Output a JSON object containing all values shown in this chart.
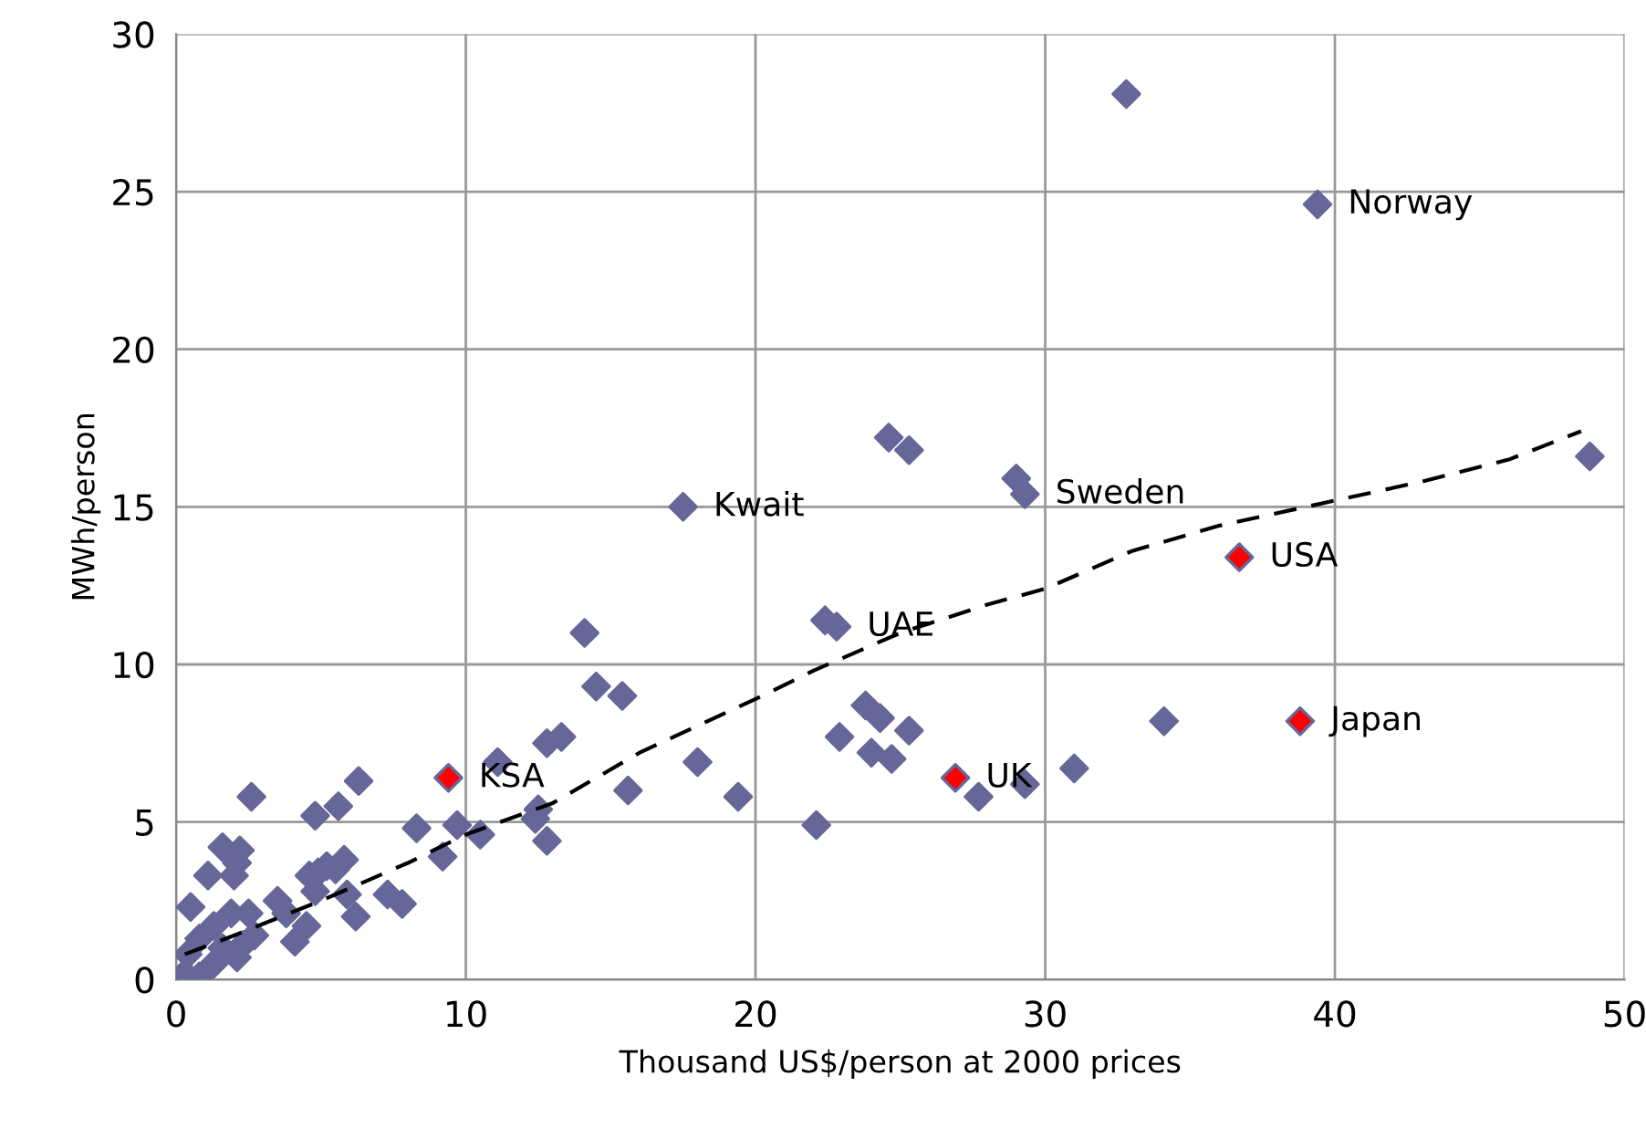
{
  "chart_data": {
    "type": "scatter",
    "xlabel": "Thousand US$/person at 2000 prices",
    "ylabel": "MWh/person",
    "xlim": [
      0,
      50
    ],
    "ylim": [
      0,
      30
    ],
    "xticks": [
      0,
      10,
      20,
      30,
      40,
      50
    ],
    "yticks": [
      0,
      5,
      10,
      15,
      20,
      25,
      30
    ],
    "grid": true,
    "legend": false,
    "marker": "diamond",
    "series": [
      {
        "color": "#666699",
        "x": [
          32.8,
          39.4,
          48.8,
          17.5,
          24.6,
          25.3,
          29.0,
          29.3,
          22.4,
          22.8,
          23.8,
          24.3,
          22.9,
          25.3,
          24.0,
          24.7,
          27.7,
          29.3,
          31.0,
          34.1,
          22.1,
          19.4,
          18.0,
          15.6,
          14.1,
          14.5,
          15.4,
          11.1,
          12.8,
          13.3,
          12.5,
          12.4,
          12.8,
          9.2,
          9.7,
          10.5,
          8.3,
          2.6,
          6.3,
          4.8,
          5.6,
          1.6,
          2.2,
          2.0,
          1.1,
          2.1,
          4.6,
          5.2,
          5.8,
          4.8,
          5.9,
          6.2,
          7.3,
          7.8,
          3.5,
          3.8,
          4.5,
          4.1,
          2.5,
          2.7,
          1.9,
          0.5,
          1.3,
          0.8,
          1.6,
          0.4,
          1.3,
          0.3,
          0.8,
          2.1,
          2.3,
          4.9,
          5.5
        ],
        "values": [
          28.1,
          24.6,
          16.6,
          15.0,
          17.2,
          16.8,
          15.9,
          15.4,
          11.4,
          11.2,
          8.7,
          8.3,
          7.7,
          7.9,
          7.2,
          7.0,
          5.8,
          6.2,
          6.7,
          8.2,
          4.9,
          5.8,
          6.9,
          6.0,
          11.0,
          9.3,
          9.0,
          6.9,
          7.5,
          7.7,
          5.4,
          5.1,
          4.4,
          3.9,
          4.9,
          4.6,
          4.8,
          5.8,
          6.3,
          5.2,
          5.5,
          4.2,
          4.1,
          3.3,
          3.3,
          3.7,
          3.3,
          3.6,
          3.8,
          2.8,
          2.7,
          2.0,
          2.7,
          2.4,
          2.5,
          2.1,
          1.7,
          1.2,
          2.1,
          1.4,
          2.1,
          2.3,
          1.7,
          1.3,
          1.0,
          0.8,
          0.5,
          0.2,
          0.1,
          0.7,
          1.1,
          3.4,
          3.5
        ]
      },
      {
        "color": "#ff0000",
        "x": [
          9.4,
          36.7,
          38.8,
          26.9
        ],
        "values": [
          6.4,
          13.4,
          8.2,
          6.4
        ]
      },
      {
        "type": "line",
        "color": "#000000",
        "line_style": "dashed",
        "marker": "none",
        "x": [
          0.3,
          2,
          5,
          8,
          10,
          13,
          16,
          20,
          22,
          25,
          28,
          30,
          33,
          36,
          40,
          43,
          46,
          48.5
        ],
        "values": [
          0.8,
          1.4,
          2.5,
          3.7,
          4.6,
          5.6,
          7.2,
          8.9,
          9.8,
          11.0,
          11.9,
          12.4,
          13.6,
          14.4,
          15.2,
          15.8,
          16.5,
          17.4
        ]
      }
    ],
    "annotations": [
      {
        "text": "Norway",
        "x": 39.4,
        "y": 24.6
      },
      {
        "text": "Kwait",
        "x": 17.5,
        "y": 15.0
      },
      {
        "text": "Sweden",
        "x": 29.3,
        "y": 15.4
      },
      {
        "text": "USA",
        "x": 36.7,
        "y": 13.4
      },
      {
        "text": "UAE",
        "x": 22.8,
        "y": 11.2
      },
      {
        "text": "Japan",
        "x": 38.8,
        "y": 8.2
      },
      {
        "text": "KSA",
        "x": 9.4,
        "y": 6.4
      },
      {
        "text": "UK",
        "x": 26.9,
        "y": 6.4
      }
    ]
  }
}
